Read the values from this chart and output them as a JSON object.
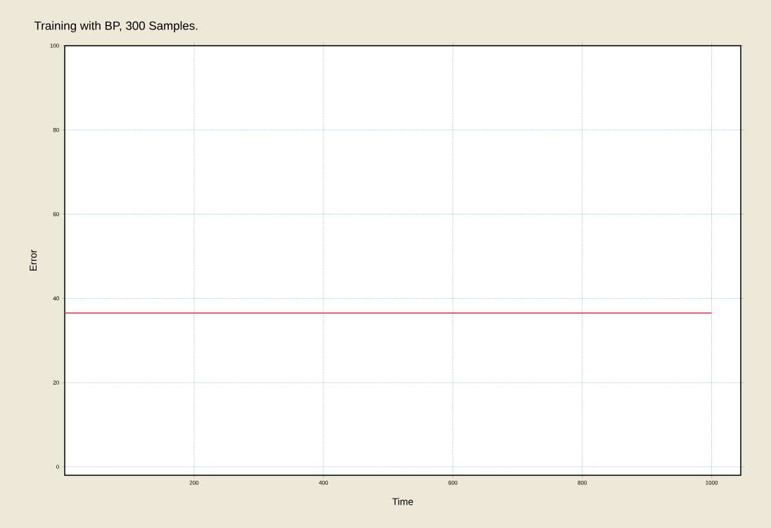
{
  "chart_data": {
    "type": "line",
    "title": "Training with BP, 300 Samples.",
    "xlabel": "Time",
    "ylabel": "Error",
    "x": [
      0,
      1000
    ],
    "series": [
      {
        "color": "#d9383a",
        "values": [
          36.5,
          36.5
        ]
      }
    ],
    "xlim": [
      0,
      1045
    ],
    "ylim": [
      -2,
      100
    ],
    "xticks": [
      200,
      400,
      600,
      800,
      1000
    ],
    "yticks": [
      0,
      20,
      40,
      60,
      80,
      100
    ],
    "grid": true,
    "marker": "none",
    "line_style": "solid"
  }
}
